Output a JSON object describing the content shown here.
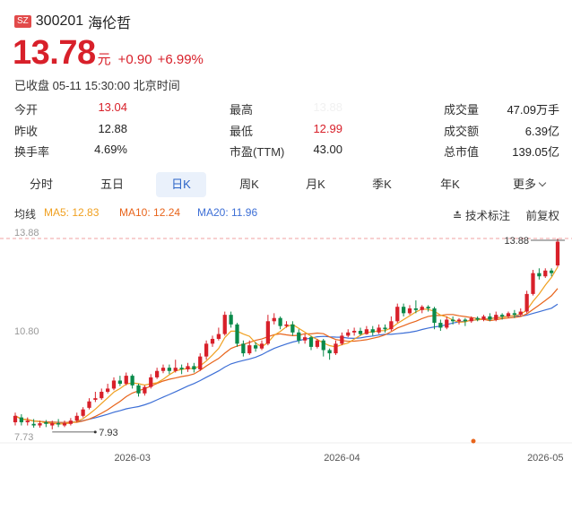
{
  "stock": {
    "exchange": "SZ",
    "code": "300201",
    "name": "海伦哲",
    "price": "13.78",
    "unit": "元",
    "change": "+0.90",
    "change_pct": "+6.99%",
    "status": "已收盘 05-11 15:30:00 北京时间"
  },
  "stats": [
    {
      "label": "今开",
      "value": "13.04"
    },
    {
      "label": "昨收",
      "value": "12.88"
    },
    {
      "label": "换手率",
      "value": "4.69%"
    },
    {
      "label": "最高",
      "value": "13.88"
    },
    {
      "label": "最低",
      "value": "12.99"
    },
    {
      "label": "市盈(TTM)",
      "value": "43.00"
    },
    {
      "label": "成交量",
      "value": "47.09万手"
    },
    {
      "label": "成交额",
      "value": "6.39亿"
    },
    {
      "label": "总市值",
      "value": "139.05亿"
    }
  ],
  "tabs": [
    "分时",
    "五日",
    "日K",
    "周K",
    "月K",
    "季K",
    "年K",
    "更多"
  ],
  "ma": {
    "title": "均线",
    "ma5": "MA5: 12.83",
    "ma10": "MA10: 12.24",
    "ma20": "MA20: 11.96"
  },
  "chart_tools": {
    "marks": "技术标注",
    "adjust": "前复权"
  },
  "colors": {
    "up": "#d8202a",
    "down": "#0a8a4a",
    "ma5": "#f0a020",
    "ma10": "#e8641b",
    "ma20": "#3d6fd6"
  },
  "chart_data": {
    "type": "candlestick",
    "y_ticks": [
      "13.88",
      "10.80",
      "7.73"
    ],
    "ylim": [
      7.73,
      13.88
    ],
    "x_labels": [
      "2026-03",
      "2026-04",
      "2026-05"
    ],
    "x_label_index": [
      19,
      53,
      86
    ],
    "max_label": "13.88",
    "min_label": "7.93",
    "max_index": 88,
    "min_index": 6,
    "candles": [
      [
        8.15,
        8.35,
        8.45,
        8.05
      ],
      [
        8.3,
        8.15,
        8.4,
        8.05
      ],
      [
        8.15,
        8.2,
        8.3,
        8.05
      ],
      [
        8.1,
        8.05,
        8.25,
        7.98
      ],
      [
        8.05,
        8.12,
        8.2,
        7.98
      ],
      [
        8.15,
        8.1,
        8.22,
        8.0
      ],
      [
        8.05,
        8.12,
        8.2,
        7.93
      ],
      [
        8.12,
        8.08,
        8.25,
        8.0
      ],
      [
        8.05,
        8.12,
        8.2,
        8.0
      ],
      [
        8.1,
        8.2,
        8.28,
        8.05
      ],
      [
        8.2,
        8.35,
        8.45,
        8.15
      ],
      [
        8.35,
        8.55,
        8.62,
        8.3
      ],
      [
        8.6,
        8.8,
        8.9,
        8.55
      ],
      [
        8.85,
        8.9,
        9.1,
        8.78
      ],
      [
        8.9,
        9.1,
        9.2,
        8.85
      ],
      [
        9.1,
        9.2,
        9.35,
        9.05
      ],
      [
        9.2,
        9.45,
        9.55,
        9.15
      ],
      [
        9.45,
        9.35,
        9.6,
        9.28
      ],
      [
        9.35,
        9.6,
        9.7,
        9.3
      ],
      [
        9.6,
        9.3,
        9.65,
        9.2
      ],
      [
        9.3,
        9.05,
        9.35,
        8.95
      ],
      [
        9.05,
        9.25,
        9.3,
        8.98
      ],
      [
        9.25,
        9.55,
        9.65,
        9.2
      ],
      [
        9.55,
        9.75,
        9.85,
        9.5
      ],
      [
        9.75,
        9.85,
        9.95,
        9.68
      ],
      [
        9.85,
        9.75,
        9.95,
        9.65
      ],
      [
        9.75,
        9.85,
        10.1,
        9.7
      ],
      [
        9.85,
        9.8,
        9.95,
        9.65
      ],
      [
        9.8,
        9.9,
        10.0,
        9.72
      ],
      [
        9.9,
        9.8,
        10.0,
        9.7
      ],
      [
        9.8,
        10.2,
        10.3,
        9.75
      ],
      [
        10.2,
        10.6,
        10.7,
        10.1
      ],
      [
        10.6,
        10.75,
        10.85,
        10.5
      ],
      [
        10.75,
        10.9,
        11.1,
        10.7
      ],
      [
        10.9,
        11.5,
        11.6,
        10.85
      ],
      [
        11.5,
        11.2,
        11.6,
        11.1
      ],
      [
        11.2,
        10.6,
        11.25,
        10.5
      ],
      [
        10.6,
        10.3,
        10.7,
        10.2
      ],
      [
        10.3,
        10.55,
        10.7,
        10.25
      ],
      [
        10.55,
        10.45,
        10.65,
        10.35
      ],
      [
        10.45,
        10.6,
        10.7,
        10.4
      ],
      [
        10.6,
        11.3,
        11.5,
        10.55
      ],
      [
        11.3,
        11.4,
        11.55,
        11.2
      ],
      [
        11.4,
        11.15,
        11.45,
        11.05
      ],
      [
        11.15,
        11.2,
        11.3,
        11.1
      ],
      [
        11.2,
        10.95,
        11.3,
        10.85
      ],
      [
        10.95,
        10.7,
        11.05,
        10.6
      ],
      [
        10.7,
        10.8,
        10.9,
        10.6
      ],
      [
        10.8,
        10.5,
        10.85,
        10.4
      ],
      [
        10.5,
        10.7,
        10.75,
        10.45
      ],
      [
        10.7,
        10.4,
        10.75,
        10.2
      ],
      [
        10.4,
        10.3,
        10.45,
        10.1
      ],
      [
        10.3,
        10.6,
        10.7,
        10.25
      ],
      [
        10.6,
        10.85,
        10.95,
        10.55
      ],
      [
        10.85,
        10.95,
        11.05,
        10.8
      ],
      [
        10.95,
        11.0,
        11.1,
        10.85
      ],
      [
        11.0,
        10.9,
        11.1,
        10.85
      ],
      [
        10.9,
        11.05,
        11.15,
        10.88
      ],
      [
        11.05,
        10.95,
        11.15,
        10.85
      ],
      [
        10.95,
        11.1,
        11.2,
        10.9
      ],
      [
        11.1,
        11.05,
        11.2,
        10.95
      ],
      [
        11.05,
        11.3,
        11.45,
        11.0
      ],
      [
        11.3,
        11.75,
        11.85,
        11.25
      ],
      [
        11.75,
        11.55,
        11.85,
        11.45
      ],
      [
        11.55,
        11.7,
        11.8,
        11.5
      ],
      [
        11.7,
        11.65,
        11.95,
        11.55
      ],
      [
        11.65,
        11.75,
        11.8,
        11.55
      ],
      [
        11.75,
        11.7,
        11.8,
        11.6
      ],
      [
        11.7,
        11.25,
        11.75,
        11.05
      ],
      [
        11.25,
        11.1,
        11.35,
        11.0
      ],
      [
        11.1,
        11.35,
        11.45,
        11.05
      ],
      [
        11.35,
        11.3,
        11.45,
        11.2
      ],
      [
        11.3,
        11.35,
        11.4,
        11.2
      ],
      [
        11.35,
        11.3,
        11.4,
        11.15
      ],
      [
        11.3,
        11.4,
        11.45,
        11.25
      ],
      [
        11.4,
        11.35,
        11.45,
        11.3
      ],
      [
        11.35,
        11.45,
        11.5,
        11.3
      ],
      [
        11.45,
        11.35,
        11.55,
        11.3
      ],
      [
        11.35,
        11.5,
        11.6,
        11.3
      ],
      [
        11.5,
        11.45,
        11.55,
        11.35
      ],
      [
        11.45,
        11.55,
        11.6,
        11.4
      ],
      [
        11.55,
        11.5,
        11.65,
        11.4
      ],
      [
        11.5,
        11.6,
        11.7,
        11.45
      ],
      [
        11.6,
        12.15,
        12.25,
        11.55
      ],
      [
        12.15,
        12.8,
        12.9,
        12.1
      ],
      [
        12.8,
        12.7,
        12.95,
        12.6
      ],
      [
        12.7,
        12.88,
        12.95,
        12.65
      ],
      [
        12.88,
        12.8,
        12.95,
        12.7
      ],
      [
        13.04,
        13.78,
        13.88,
        12.99
      ]
    ]
  }
}
